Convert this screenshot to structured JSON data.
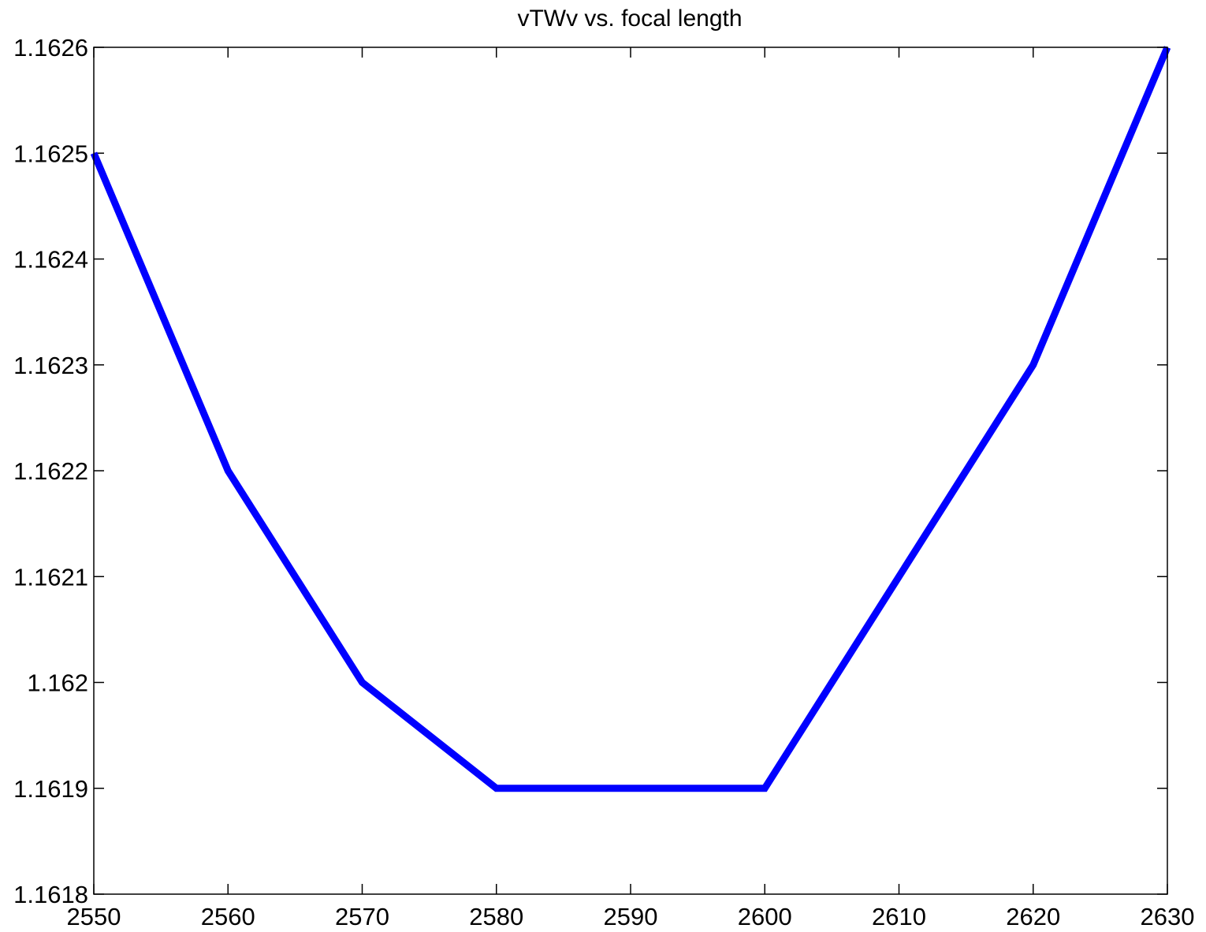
{
  "chart_data": {
    "type": "line",
    "title": "vTWv vs. focal length",
    "xlabel": "",
    "ylabel": "",
    "xlim": [
      2550,
      2630
    ],
    "ylim": [
      1.1618,
      1.1626
    ],
    "grid": false,
    "x_ticks": [
      "2550",
      "2560",
      "2570",
      "2580",
      "2590",
      "2600",
      "2610",
      "2620",
      "2630"
    ],
    "y_ticks": [
      "1.1618",
      "1.1619",
      "1.162",
      "1.1621",
      "1.1622",
      "1.1623",
      "1.1624",
      "1.1625",
      "1.1626"
    ],
    "series": [
      {
        "color": "#0000ff",
        "x": [
          2550,
          2560,
          2570,
          2580,
          2590,
          2600,
          2610,
          2620,
          2630
        ],
        "y": [
          1.1625,
          1.1622,
          1.162,
          1.1619,
          1.1619,
          1.1619,
          1.1621,
          1.1623,
          1.1626
        ]
      }
    ]
  }
}
